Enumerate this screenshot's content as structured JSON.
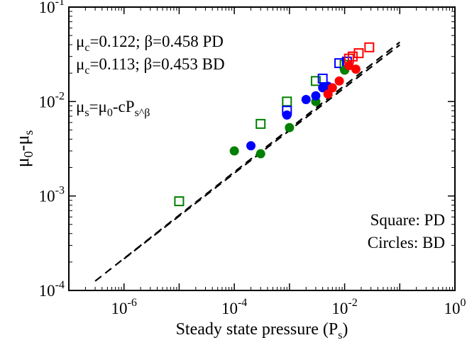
{
  "chart_data": {
    "type": "scatter",
    "xscale": "log",
    "yscale": "log",
    "xlim": [
      1e-07,
      1
    ],
    "ylim": [
      0.0001,
      0.1
    ],
    "grid": false,
    "xlabel": "Steady state pressure (P_s)",
    "ylabel": "μ_0-μ_s",
    "x_ticks": [
      {
        "value": 1e-06,
        "base": "10",
        "exp": "-6"
      },
      {
        "value": 0.0001,
        "base": "10",
        "exp": "-4"
      },
      {
        "value": 0.01,
        "base": "10",
        "exp": "-2"
      },
      {
        "value": 1,
        "base": "10",
        "exp": "0"
      }
    ],
    "y_ticks": [
      {
        "value": 0.0001,
        "base": "10",
        "exp": "-4"
      },
      {
        "value": 0.001,
        "base": "10",
        "exp": "-3"
      },
      {
        "value": 0.01,
        "base": "10",
        "exp": "-2"
      },
      {
        "value": 0.1,
        "base": "10",
        "exp": "-1"
      }
    ],
    "annotations": {
      "fit_pd": "μ_c=0.122; β=0.458 PD",
      "fit_bd": "μ_c=0.113; β=0.453 BD",
      "equation": "μ_s=μ_0-cP_s^β",
      "legend_square": "Square: PD",
      "legend_circle": "Circles: BD"
    },
    "fit_lines": [
      {
        "label": "PD",
        "c": 0.122,
        "beta": 0.458,
        "x_range": [
          3e-07,
          0.1
        ],
        "style": "dashed"
      },
      {
        "label": "BD",
        "c": 0.113,
        "beta": 0.453,
        "x_range": [
          1e-06,
          0.1
        ],
        "style": "dashed"
      }
    ],
    "series": [
      {
        "marker": "square-open",
        "color": "#008000",
        "points": [
          [
            1e-05,
            0.00088
          ],
          [
            0.0003,
            0.0058
          ],
          [
            0.0009,
            0.01
          ],
          [
            0.003,
            0.0165
          ],
          [
            0.01,
            0.0245
          ]
        ]
      },
      {
        "marker": "square-open",
        "color": "#0000ff",
        "points": [
          [
            0.0009,
            0.008
          ],
          [
            0.004,
            0.0175
          ],
          [
            0.008,
            0.0255
          ],
          [
            0.011,
            0.0265
          ]
        ]
      },
      {
        "marker": "square-open",
        "color": "#ff0000",
        "points": [
          [
            0.012,
            0.0285
          ],
          [
            0.014,
            0.03
          ],
          [
            0.018,
            0.0325
          ],
          [
            0.028,
            0.0375
          ]
        ]
      },
      {
        "marker": "circle-filled",
        "color": "#008000",
        "points": [
          [
            0.0001,
            0.003
          ],
          [
            0.0003,
            0.0028
          ],
          [
            0.001,
            0.0053
          ],
          [
            0.003,
            0.01
          ],
          [
            0.01,
            0.0215
          ]
        ]
      },
      {
        "marker": "circle-filled",
        "color": "#0000ff",
        "points": [
          [
            0.0002,
            0.0034
          ],
          [
            0.0009,
            0.0072
          ],
          [
            0.002,
            0.0105
          ],
          [
            0.003,
            0.0115
          ],
          [
            0.004,
            0.014
          ],
          [
            0.005,
            0.0145
          ]
        ]
      },
      {
        "marker": "circle-filled",
        "color": "#ff0000",
        "points": [
          [
            0.005,
            0.012
          ],
          [
            0.006,
            0.014
          ],
          [
            0.008,
            0.0165
          ],
          [
            0.012,
            0.024
          ],
          [
            0.016,
            0.022
          ]
        ]
      }
    ]
  }
}
